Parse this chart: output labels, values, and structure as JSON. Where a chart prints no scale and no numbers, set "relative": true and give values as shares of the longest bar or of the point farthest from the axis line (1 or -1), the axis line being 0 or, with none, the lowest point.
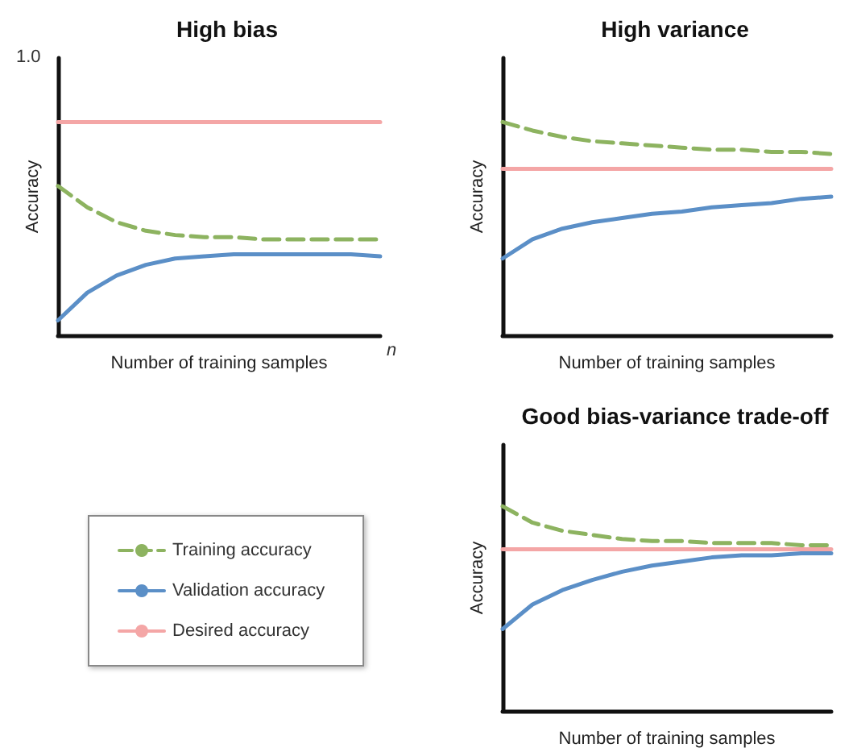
{
  "chart_data": [
    {
      "type": "line",
      "title": "High bias",
      "xlabel": "Number of training samples",
      "ylabel": "Accuracy",
      "relative": true,
      "marker": "none",
      "annotations": [
        "1.0",
        "n"
      ],
      "categories": [
        null,
        null,
        null,
        null,
        null,
        null,
        null,
        null,
        null,
        null,
        null,
        null
      ],
      "series": [
        {
          "color": "#8db360",
          "line_style": "dashed",
          "values": [
            0.7,
            0.6,
            0.53,
            0.49,
            0.47,
            0.46,
            0.46,
            0.45,
            0.45,
            0.45,
            0.45,
            0.45
          ]
        },
        {
          "color": "#5b8fc7",
          "line_style": "solid",
          "values": [
            0.07,
            0.2,
            0.28,
            0.33,
            0.36,
            0.37,
            0.38,
            0.38,
            0.38,
            0.38,
            0.38,
            0.37
          ]
        },
        {
          "color": "#f4a6a6",
          "line_style": "solid",
          "values": [
            1,
            1,
            1,
            1,
            1,
            1,
            1,
            1,
            1,
            1,
            1,
            1
          ]
        }
      ]
    },
    {
      "type": "line",
      "title": "High variance",
      "xlabel": "Number of training samples",
      "ylabel": "Accuracy",
      "relative": true,
      "marker": "none",
      "categories": [
        null,
        null,
        null,
        null,
        null,
        null,
        null,
        null,
        null,
        null,
        null,
        null
      ],
      "series": [
        {
          "color": "#8db360",
          "line_style": "dashed",
          "values": [
            1.0,
            0.96,
            0.93,
            0.91,
            0.9,
            0.89,
            0.88,
            0.87,
            0.87,
            0.86,
            0.86,
            0.85
          ]
        },
        {
          "color": "#5b8fc7",
          "line_style": "solid",
          "values": [
            0.36,
            0.45,
            0.5,
            0.53,
            0.55,
            0.57,
            0.58,
            0.6,
            0.61,
            0.62,
            0.64,
            0.65
          ]
        },
        {
          "color": "#f4a6a6",
          "line_style": "solid",
          "values": [
            0.78,
            0.78,
            0.78,
            0.78,
            0.78,
            0.78,
            0.78,
            0.78,
            0.78,
            0.78,
            0.78,
            0.78
          ]
        }
      ]
    },
    {
      "type": "line",
      "title": "Good bias-variance trade-off",
      "xlabel": "Number of training samples",
      "ylabel": "Accuracy",
      "relative": true,
      "marker": "none",
      "legend": "left",
      "categories": [
        null,
        null,
        null,
        null,
        null,
        null,
        null,
        null,
        null,
        null,
        null,
        null
      ],
      "series": [
        {
          "name": "Training accuracy",
          "color": "#8db360",
          "line_style": "dashed",
          "values": [
            1.0,
            0.92,
            0.88,
            0.86,
            0.84,
            0.83,
            0.83,
            0.82,
            0.82,
            0.82,
            0.81,
            0.81
          ]
        },
        {
          "name": "Validation accuracy",
          "color": "#5b8fc7",
          "line_style": "solid",
          "values": [
            0.4,
            0.52,
            0.59,
            0.64,
            0.68,
            0.71,
            0.73,
            0.75,
            0.76,
            0.76,
            0.77,
            0.77
          ]
        },
        {
          "name": "Desired accuracy",
          "color": "#f4a6a6",
          "line_style": "solid",
          "values": [
            0.79,
            0.79,
            0.79,
            0.79,
            0.79,
            0.79,
            0.79,
            0.79,
            0.79,
            0.79,
            0.79,
            0.79
          ]
        }
      ]
    }
  ]
}
